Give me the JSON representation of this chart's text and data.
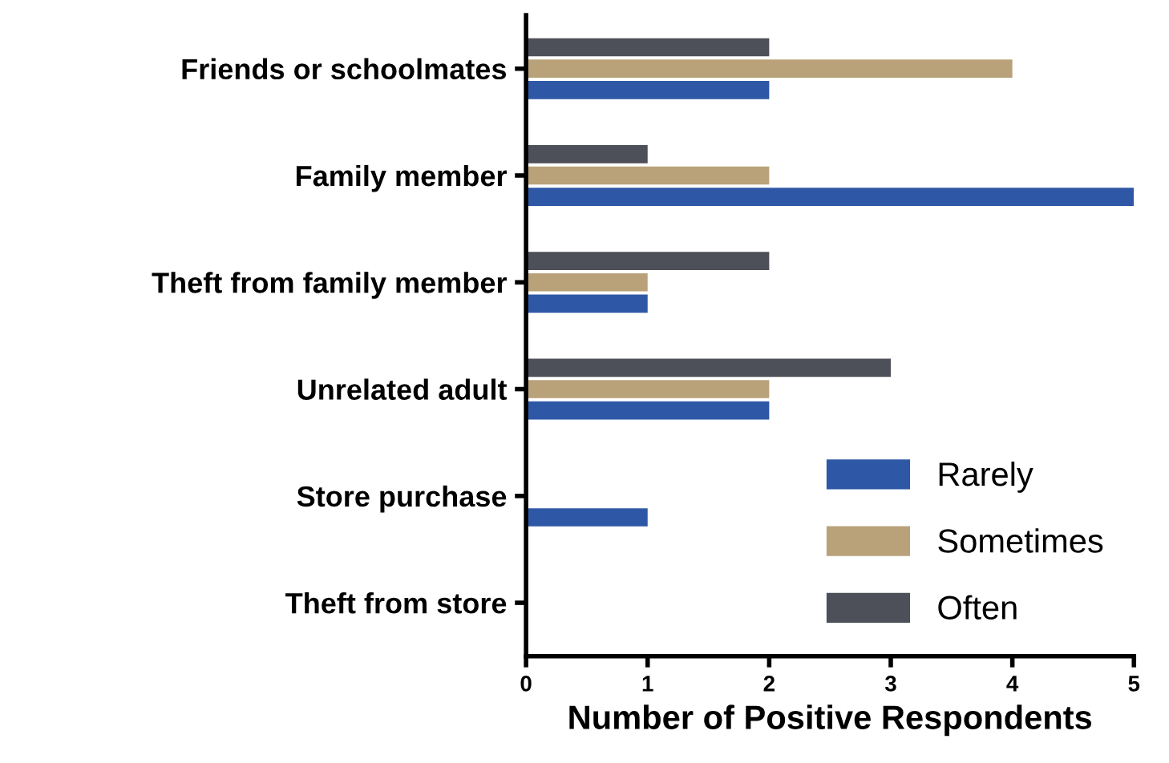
{
  "chart_data": {
    "type": "bar",
    "orientation": "horizontal",
    "categories": [
      "Friends or schoolmates",
      "Family member",
      "Theft from family member",
      "Unrelated adult",
      "Store purchase",
      "Theft from store"
    ],
    "series": [
      {
        "name": "Rarely",
        "color": "#2e58a6",
        "values": [
          2,
          5,
          1,
          2,
          1,
          0
        ]
      },
      {
        "name": "Sometimes",
        "color": "#b9a27a",
        "values": [
          4,
          2,
          1,
          2,
          0,
          0
        ]
      },
      {
        "name": "Often",
        "color": "#4d5058",
        "values": [
          2,
          1,
          2,
          3,
          0,
          0
        ]
      }
    ],
    "xlabel": "Number of Positive Respondents",
    "xlim": [
      0,
      5
    ],
    "xticks": [
      0,
      1,
      2,
      3,
      4,
      5
    ],
    "grid": false,
    "legend": "bottom right"
  }
}
